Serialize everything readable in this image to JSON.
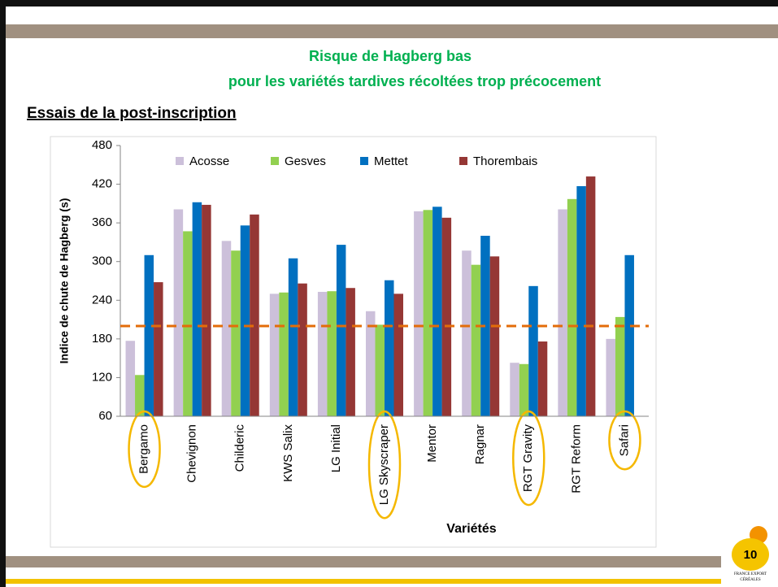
{
  "slide": {
    "title_line1": "Risque de Hagberg bas",
    "title_line2": "pour les variétés tardives récoltées trop précocement",
    "section": "Essais de la post-inscription",
    "page_number": "10",
    "logo_line1": "FRANCE EXPORT",
    "logo_line2": "CÉRÉALES"
  },
  "chart_data": {
    "type": "bar",
    "x_label": "Variétés",
    "y_label": "Indice de chute de Hagberg (s)",
    "categories": [
      "Bergamo",
      "Chevignon",
      "Childeric",
      "KWS Salix",
      "LG Initial",
      "LG Skyscraper",
      "Mentor",
      "Ragnar",
      "RGT Gravity",
      "RGT Reform",
      "Safari"
    ],
    "series": [
      {
        "name": "Acosse",
        "color": "#ccc0da",
        "values": [
          177,
          381,
          332,
          250,
          253,
          223,
          378,
          317,
          143,
          381,
          180
        ]
      },
      {
        "name": "Gesves",
        "color": "#92d050",
        "values": [
          124,
          347,
          317,
          252,
          254,
          202,
          380,
          295,
          141,
          397,
          214
        ]
      },
      {
        "name": "Mettet",
        "color": "#0070c0",
        "values": [
          310,
          392,
          356,
          305,
          326,
          271,
          385,
          340,
          262,
          417,
          310
        ]
      },
      {
        "name": "Thorembais",
        "color": "#953735",
        "values": [
          268,
          388,
          373,
          266,
          259,
          250,
          368,
          308,
          176,
          432,
          null
        ]
      }
    ],
    "ylim": [
      60,
      480
    ],
    "yticks": [
      60,
      120,
      180,
      240,
      300,
      360,
      420,
      480
    ],
    "reference_line": {
      "value": 200,
      "color": "#e36c09"
    },
    "highlight": [
      0,
      5,
      8,
      10
    ],
    "highlight_color": "#f5b800",
    "legend": "top"
  }
}
